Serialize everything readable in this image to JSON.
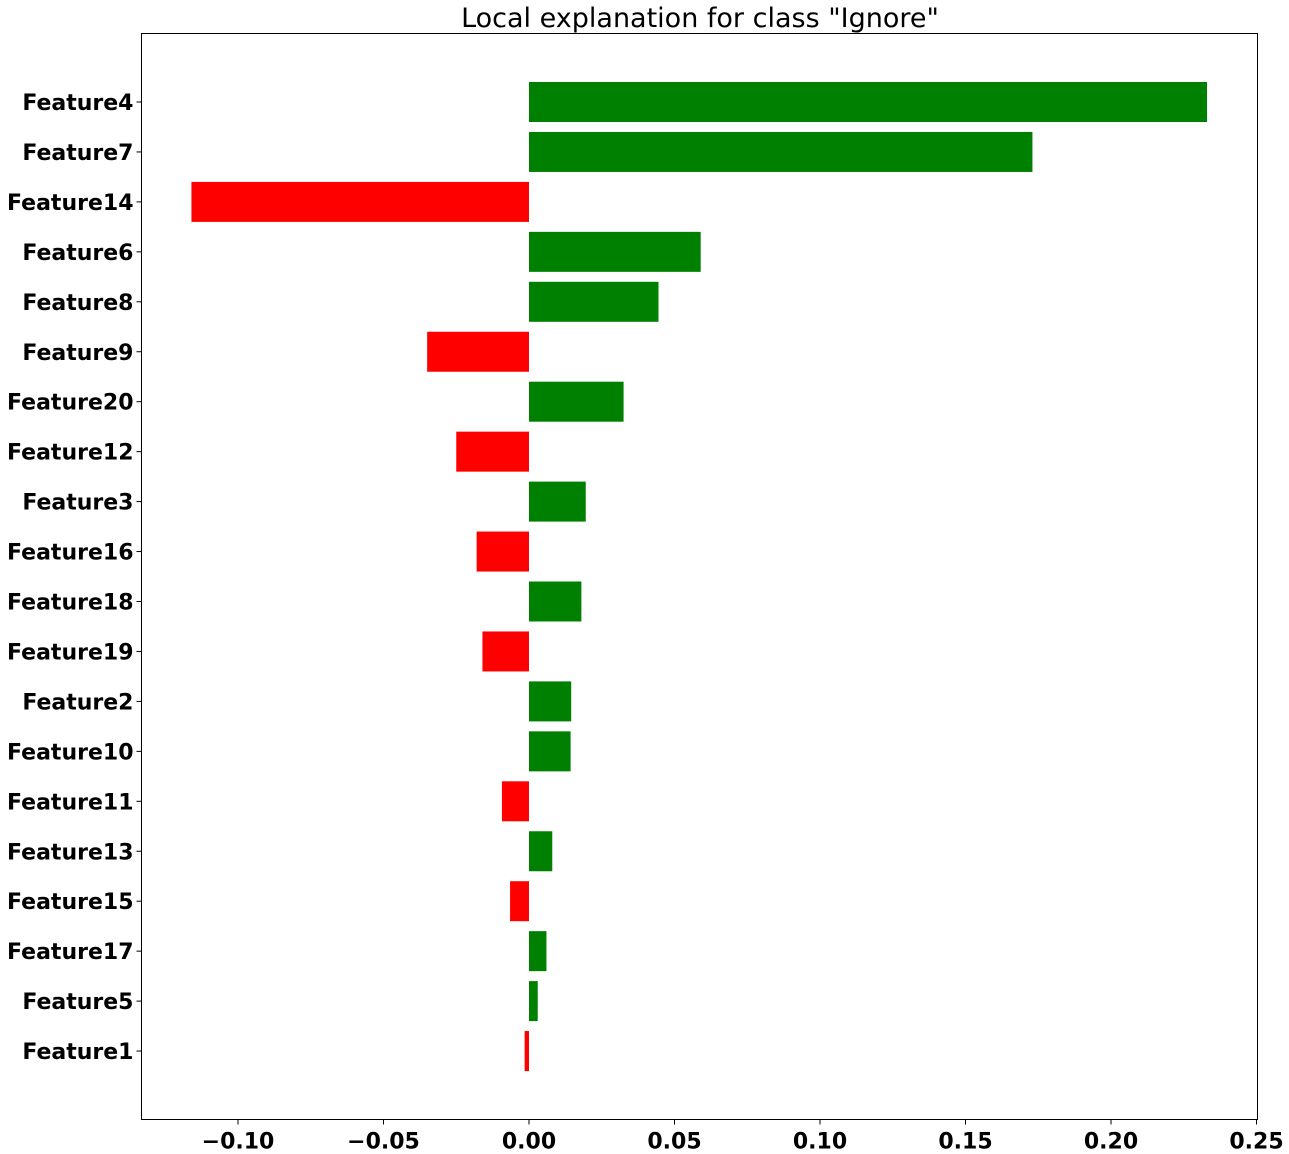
{
  "chart_data": {
    "type": "bar",
    "orientation": "horizontal",
    "title": "Local explanation for class \"Ignore\"",
    "xlabel": "",
    "ylabel": "",
    "xlim": [
      -0.133,
      0.25
    ],
    "xticks": [
      -0.1,
      -0.05,
      0.0,
      0.05,
      0.1,
      0.15,
      0.2,
      0.25
    ],
    "xtick_labels": [
      "−0.10",
      "−0.05",
      "0.00",
      "0.05",
      "0.10",
      "0.15",
      "0.20",
      "0.25"
    ],
    "grid": false,
    "positive_color": "#008000",
    "negative_color": "#ff0000",
    "categories": [
      "Feature4",
      "Feature7",
      "Feature14",
      "Feature6",
      "Feature8",
      "Feature9",
      "Feature20",
      "Feature12",
      "Feature3",
      "Feature16",
      "Feature18",
      "Feature19",
      "Feature2",
      "Feature10",
      "Feature11",
      "Feature13",
      "Feature15",
      "Feature17",
      "Feature5",
      "Feature1"
    ],
    "values": [
      0.233,
      0.173,
      -0.116,
      0.059,
      0.0445,
      -0.035,
      0.0325,
      -0.025,
      0.0195,
      -0.018,
      0.018,
      -0.016,
      0.0145,
      0.0143,
      -0.0093,
      0.008,
      -0.0065,
      0.006,
      0.003,
      -0.0015
    ]
  }
}
